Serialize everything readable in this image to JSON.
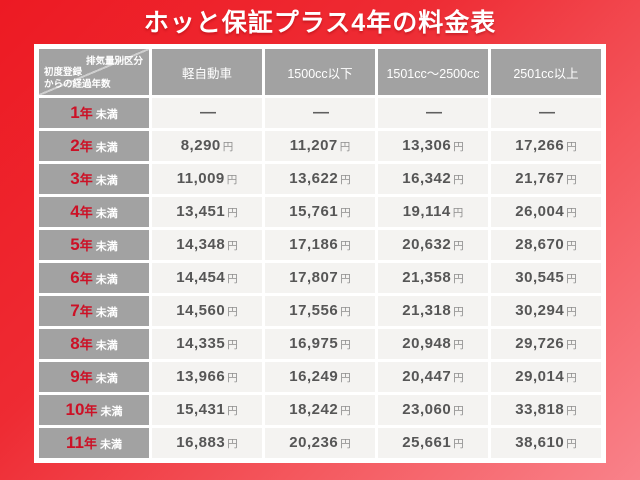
{
  "title": "ホッと保証プラス4年の料金表",
  "table": {
    "corner_top_right": "排気量別区分",
    "corner_bottom_left_line1": "初度登録",
    "corner_bottom_left_line2": "からの経過年数",
    "columns": [
      "軽自動車",
      "1500cc以下",
      "1501cc～2500cc",
      "2501cc以上"
    ],
    "year_char": "年",
    "row_suffix": "未満",
    "unit": "円",
    "dash": "—",
    "rows": [
      {
        "num": "1",
        "values": [
          "—",
          "—",
          "—",
          "—"
        ]
      },
      {
        "num": "2",
        "values": [
          "8,290",
          "11,207",
          "13,306",
          "17,266"
        ]
      },
      {
        "num": "3",
        "values": [
          "11,009",
          "13,622",
          "16,342",
          "21,767"
        ]
      },
      {
        "num": "4",
        "values": [
          "13,451",
          "15,761",
          "19,114",
          "26,004"
        ]
      },
      {
        "num": "5",
        "values": [
          "14,348",
          "17,186",
          "20,632",
          "28,670"
        ]
      },
      {
        "num": "6",
        "values": [
          "14,454",
          "17,807",
          "21,358",
          "30,545"
        ]
      },
      {
        "num": "7",
        "values": [
          "14,560",
          "17,556",
          "21,318",
          "30,294"
        ]
      },
      {
        "num": "8",
        "values": [
          "14,335",
          "16,975",
          "20,948",
          "29,726"
        ]
      },
      {
        "num": "9",
        "values": [
          "13,966",
          "16,249",
          "20,447",
          "29,014"
        ]
      },
      {
        "num": "10",
        "values": [
          "15,431",
          "18,242",
          "23,060",
          "33,818"
        ]
      },
      {
        "num": "11",
        "values": [
          "16,883",
          "20,236",
          "25,661",
          "38,610"
        ]
      }
    ]
  },
  "colors": {
    "background_red_start": "#ed1a23",
    "background_red_end": "#f9828a",
    "header_gray": "#a2a2a2",
    "cell_background": "#f4f3f1",
    "label_red": "#cc1126",
    "price_gray": "#565656",
    "title_white": "#ffffff"
  }
}
